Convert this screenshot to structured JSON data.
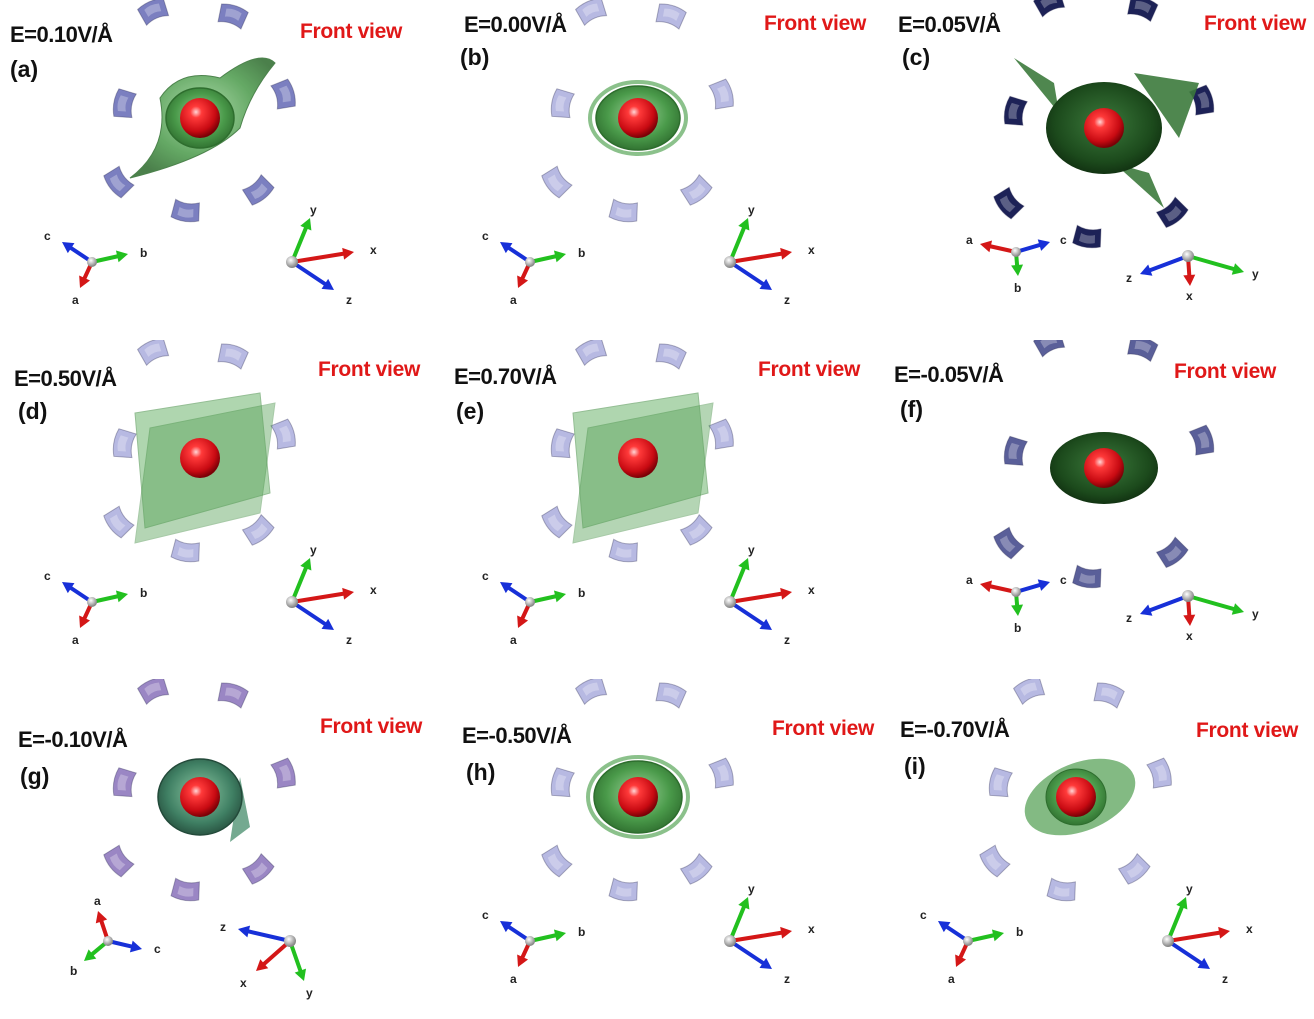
{
  "figure": {
    "panels": [
      {
        "id": "a",
        "letter": "(a)",
        "field": "E=0.10V/Å",
        "view": "Front view",
        "lattice": {
          "a": "a",
          "b": "b",
          "c": "c"
        },
        "cart": {
          "x": "x",
          "y": "y",
          "z": "z"
        },
        "variant": "v1",
        "shell": "twisted",
        "neighbor_color": "#7b7fc0"
      },
      {
        "id": "b",
        "letter": "(b)",
        "field": "E=0.00V/Å",
        "view": "Front view",
        "lattice": {
          "a": "a",
          "b": "b",
          "c": "c"
        },
        "cart": {
          "x": "x",
          "y": "y",
          "z": "z"
        },
        "variant": "v1",
        "shell": "ring",
        "neighbor_color": "#b7b9e2"
      },
      {
        "id": "c",
        "letter": "(c)",
        "field": "E=0.05V/Å",
        "view": "Front view",
        "lattice": {
          "a": "a",
          "b": "b",
          "c": "c"
        },
        "cart": {
          "x": "x",
          "y": "y",
          "z": "z"
        },
        "variant": "v2",
        "shell": "dark-petals",
        "neighbor_color": "#1d2257"
      },
      {
        "id": "d",
        "letter": "(d)",
        "field": "E=0.50V/Å",
        "view": "Front view",
        "lattice": {
          "a": "a",
          "b": "b",
          "c": "c"
        },
        "cart": {
          "x": "x",
          "y": "y",
          "z": "z"
        },
        "variant": "v1",
        "shell": "sheet",
        "neighbor_color": "#b7b9e2"
      },
      {
        "id": "e",
        "letter": "(e)",
        "field": "E=0.70V/Å",
        "view": "Front view",
        "lattice": {
          "a": "a",
          "b": "b",
          "c": "c"
        },
        "cart": {
          "x": "x",
          "y": "y",
          "z": "z"
        },
        "variant": "v1",
        "shell": "sheet",
        "neighbor_color": "#b7b9e2"
      },
      {
        "id": "f",
        "letter": "(f)",
        "field": "E=-0.05V/Å",
        "view": "Front view",
        "lattice": {
          "a": "a",
          "b": "b",
          "c": "c"
        },
        "cart": {
          "x": "x",
          "y": "y",
          "z": "z"
        },
        "variant": "v2",
        "shell": "dark-ellipse",
        "neighbor_color": "#5a5f99"
      },
      {
        "id": "g",
        "letter": "(g)",
        "field": "E=-0.10V/Å",
        "view": "Front view",
        "lattice": {
          "a": "a",
          "b": "b",
          "c": "c"
        },
        "cart": {
          "x": "x",
          "y": "y",
          "z": "z"
        },
        "variant": "v3",
        "shell": "teal-ring",
        "neighbor_color": "#9a86c4"
      },
      {
        "id": "h",
        "letter": "(h)",
        "field": "E=-0.50V/Å",
        "view": "Front view",
        "lattice": {
          "a": "a",
          "b": "b",
          "c": "c"
        },
        "cart": {
          "x": "x",
          "y": "y",
          "z": "z"
        },
        "variant": "v1",
        "shell": "ring-wide",
        "neighbor_color": "#b7b9e2"
      },
      {
        "id": "i",
        "letter": "(i)",
        "field": "E=-0.70V/Å",
        "view": "Front view",
        "lattice": {
          "a": "a",
          "b": "b",
          "c": "c"
        },
        "cart": {
          "x": "x",
          "y": "y",
          "z": "z"
        },
        "variant": "v1",
        "shell": "ellipse-tilt",
        "neighbor_color": "#b7b9e2"
      }
    ],
    "colors": {
      "atom": "#e4101a",
      "shell_green": "#4f9a50",
      "axis_red": "#d41717",
      "axis_green": "#22c01f",
      "axis_blue": "#1730d8"
    }
  }
}
